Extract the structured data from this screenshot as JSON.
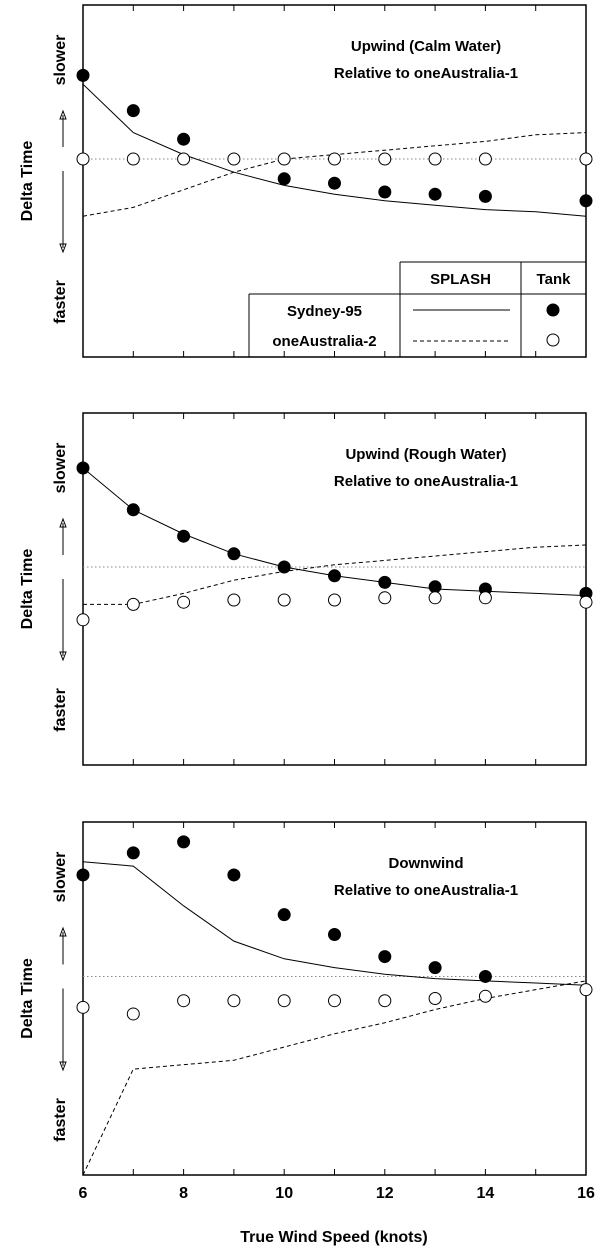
{
  "figure": {
    "xlabel": "True Wind Speed (knots)",
    "x_ticks": [
      6,
      8,
      10,
      12,
      14,
      16
    ],
    "ylabel": "Delta Time",
    "y_top_label": "slower",
    "y_bottom_label": "faster"
  },
  "legend": {
    "col_splash": "SPLASH",
    "col_tank": "Tank",
    "row1": "Sydney-95",
    "row2": "oneAustralia-2"
  },
  "chart_data": [
    {
      "type": "line",
      "title": "Upwind (Calm Water)",
      "subtitle": "Relative to oneAustralia-1",
      "xlim": [
        6,
        16
      ],
      "ylim": [
        -4.5,
        3.5
      ],
      "baseline": 0,
      "series": [
        {
          "name": "Sydney-95",
          "source": "SPLASH",
          "style": "solid",
          "x": [
            6,
            7,
            8,
            9,
            10,
            11,
            12,
            13,
            14,
            15,
            16
          ],
          "y": [
            1.7,
            0.6,
            0.1,
            -0.3,
            -0.6,
            -0.8,
            -0.95,
            -1.05,
            -1.15,
            -1.2,
            -1.3
          ]
        },
        {
          "name": "oneAustralia-2",
          "source": "SPLASH",
          "style": "dashed",
          "x": [
            6,
            7,
            8,
            9,
            10,
            11,
            12,
            13,
            14,
            15,
            16
          ],
          "y": [
            -1.3,
            -1.1,
            -0.7,
            -0.3,
            0.0,
            0.1,
            0.2,
            0.3,
            0.4,
            0.55,
            0.6
          ]
        },
        {
          "name": "Sydney-95",
          "source": "Tank",
          "marker": "filled",
          "x": [
            6,
            7,
            8,
            10,
            11,
            12,
            13,
            14,
            16
          ],
          "y": [
            1.9,
            1.1,
            0.45,
            -0.45,
            -0.55,
            -0.75,
            -0.8,
            -0.85,
            -0.95
          ]
        },
        {
          "name": "oneAustralia-2",
          "source": "Tank",
          "marker": "open",
          "x": [
            6,
            7,
            8,
            9,
            10,
            11,
            12,
            13,
            14,
            16
          ],
          "y": [
            0,
            0,
            0,
            0,
            0,
            0,
            0,
            0,
            0,
            0
          ]
        }
      ]
    },
    {
      "type": "line",
      "title": "Upwind (Rough Water)",
      "subtitle": "Relative to oneAustralia-1",
      "xlim": [
        6,
        16
      ],
      "ylim": [
        -4.5,
        3.5
      ],
      "baseline": 0,
      "series": [
        {
          "name": "Sydney-95",
          "source": "SPLASH",
          "style": "solid",
          "x": [
            6,
            7,
            8,
            9,
            10,
            11,
            12,
            13,
            14,
            15,
            16
          ],
          "y": [
            2.25,
            1.3,
            0.75,
            0.3,
            0.0,
            -0.2,
            -0.35,
            -0.5,
            -0.55,
            -0.6,
            -0.65
          ]
        },
        {
          "name": "oneAustralia-2",
          "source": "SPLASH",
          "style": "dashed",
          "x": [
            6,
            7,
            8,
            9,
            10,
            11,
            12,
            13,
            14,
            15,
            16
          ],
          "y": [
            -0.85,
            -0.85,
            -0.6,
            -0.3,
            -0.1,
            0.05,
            0.15,
            0.25,
            0.35,
            0.45,
            0.5
          ]
        },
        {
          "name": "Sydney-95",
          "source": "Tank",
          "marker": "filled",
          "x": [
            6,
            7,
            8,
            9,
            10,
            11,
            12,
            13,
            14,
            16
          ],
          "y": [
            2.25,
            1.3,
            0.7,
            0.3,
            0.0,
            -0.2,
            -0.35,
            -0.45,
            -0.5,
            -0.6
          ]
        },
        {
          "name": "oneAustralia-2",
          "source": "Tank",
          "marker": "open",
          "x": [
            6,
            7,
            8,
            9,
            10,
            11,
            12,
            13,
            14,
            16
          ],
          "y": [
            -1.2,
            -0.85,
            -0.8,
            -0.75,
            -0.75,
            -0.75,
            -0.7,
            -0.7,
            -0.7,
            -0.8
          ]
        }
      ]
    },
    {
      "type": "line",
      "title": "Downwind",
      "subtitle": "Relative to oneAustralia-1",
      "xlim": [
        6,
        16
      ],
      "ylim": [
        -4.5,
        3.5
      ],
      "baseline": 0,
      "series": [
        {
          "name": "Sydney-95",
          "source": "SPLASH",
          "style": "solid",
          "x": [
            6,
            7,
            8,
            9,
            10,
            11,
            12,
            13,
            14,
            15,
            16
          ],
          "y": [
            2.6,
            2.5,
            1.6,
            0.8,
            0.4,
            0.2,
            0.05,
            -0.05,
            -0.1,
            -0.15,
            -0.2
          ]
        },
        {
          "name": "oneAustralia-2",
          "source": "SPLASH",
          "style": "dashed",
          "x": [
            6,
            7,
            8,
            9,
            10,
            11,
            12,
            13,
            14,
            15,
            16
          ],
          "y": [
            -4.5,
            -2.1,
            -2.0,
            -1.9,
            -1.6,
            -1.3,
            -1.05,
            -0.75,
            -0.5,
            -0.3,
            -0.1
          ]
        },
        {
          "name": "Sydney-95",
          "source": "Tank",
          "marker": "filled",
          "x": [
            6,
            7,
            8,
            9,
            10,
            11,
            12,
            13,
            14
          ],
          "y": [
            2.3,
            2.8,
            3.05,
            2.3,
            1.4,
            0.95,
            0.45,
            0.2,
            0.0
          ]
        },
        {
          "name": "oneAustralia-2",
          "source": "Tank",
          "marker": "open",
          "x": [
            6,
            7,
            8,
            9,
            10,
            11,
            12,
            13,
            14,
            16
          ],
          "y": [
            -0.7,
            -0.85,
            -0.55,
            -0.55,
            -0.55,
            -0.55,
            -0.55,
            -0.5,
            -0.45,
            -0.3
          ]
        }
      ]
    }
  ]
}
